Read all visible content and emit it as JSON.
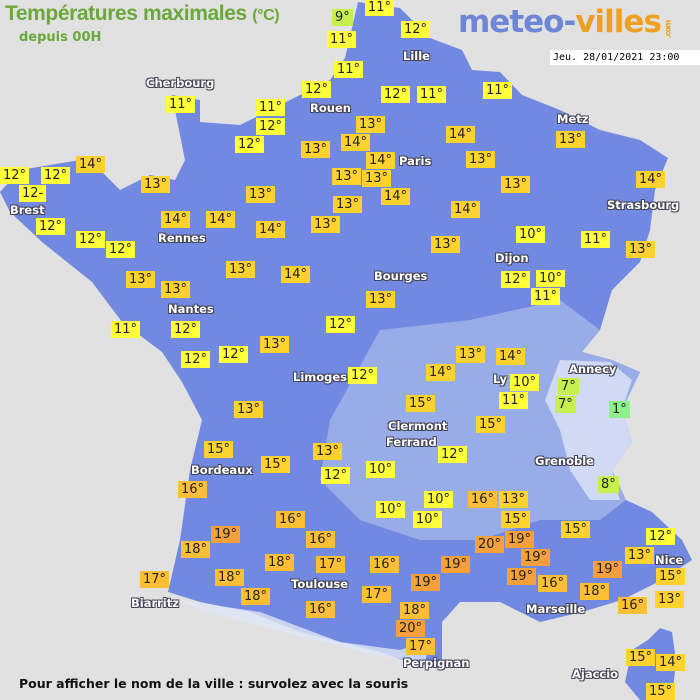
{
  "header": {
    "title": "Températures maximales",
    "title_unit": "(°C)",
    "subtitle": "depuis 00H",
    "logo_part1": "meteo-",
    "logo_part2": "villes",
    "logo_suffix": ".com",
    "datetime": "Jeu. 28/01/2021 23:00"
  },
  "footer": {
    "hint": "Pour afficher le nom de la ville : survolez avec la souris"
  },
  "colors": {
    "land": "#7189e0",
    "sea": "#e2e1e1",
    "title": "#6aa83a",
    "logo_blue": "#6f86d6",
    "logo_orange": "#f0a020",
    "temp_cold": "#8ef08a",
    "temp_cool": "#c6f050",
    "temp_mild": "#ffff3a",
    "temp_warm": "#ffd22e",
    "temp_hot": "#ffbf35",
    "temp_very_hot": "#f5a03a"
  },
  "cities": [
    "Cherbourg",
    "Rouen",
    "Lille",
    "Paris",
    "Metz",
    "Strasbourg",
    "Brest",
    "Rennes",
    "Nantes",
    "Bourges",
    "Dijon",
    "Limoges",
    "Ly",
    "Annecy",
    "Clermont",
    "Ferrand",
    "Grenoble",
    "Bordeaux",
    "Toulouse",
    "Biarritz",
    "Marseille",
    "Nice",
    "Perpignan",
    "Ajaccio"
  ],
  "temperatures": [
    "9°",
    "11°",
    "12°",
    "11°",
    "11°",
    "12°",
    "11°",
    "12°",
    "12°",
    "11°",
    "12°",
    "11°",
    "11°",
    "14°",
    "12°",
    "12°",
    "12-",
    "12°",
    "12°",
    "12°",
    "13°",
    "14°",
    "14°",
    "13°",
    "14°",
    "13°",
    "13°",
    "13°",
    "13°",
    "14°",
    "11°",
    "12°",
    "12°",
    "12°",
    "13°",
    "12°",
    "13°",
    "13°",
    "14°",
    "14°",
    "13°",
    "13°",
    "13°",
    "14°",
    "13°",
    "14°",
    "13°",
    "13°",
    "14°",
    "13°",
    "10°",
    "12°",
    "10°",
    "11°",
    "11°",
    "13°",
    "14°",
    "13°",
    "13°",
    "14°",
    "14°",
    "12°",
    "10°",
    "11°",
    "7°",
    "7°",
    "1°",
    "15°",
    "15°",
    "12°",
    "13°",
    "15°",
    "15°",
    "13°",
    "12°",
    "10°",
    "16°",
    "16°",
    "10°",
    "10°",
    "10°",
    "16°",
    "13°",
    "15°",
    "19°",
    "18°",
    "16°",
    "17°",
    "18°",
    "17°",
    "18°",
    "18°",
    "16°",
    "16°",
    "17°",
    "19°",
    "20°",
    "19°",
    "19°",
    "19°",
    "16°",
    "15°",
    "18°",
    "19°",
    "16°",
    "12°",
    "13°",
    "15°",
    "13°",
    "19°",
    "18°",
    "20°",
    "17°",
    "15°",
    "14°",
    "15°",
    "8°"
  ]
}
